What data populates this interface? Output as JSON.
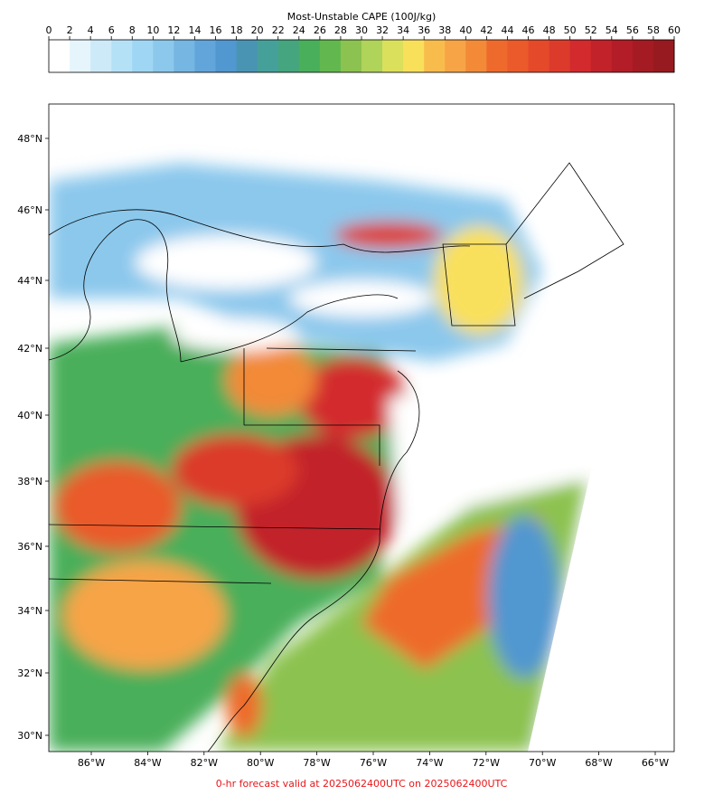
{
  "colorbar": {
    "title": "Most-Unstable CAPE (100J/kg)",
    "ticks": [
      0,
      2,
      4,
      6,
      8,
      10,
      12,
      14,
      16,
      18,
      20,
      22,
      24,
      26,
      28,
      30,
      32,
      34,
      36,
      38,
      40,
      42,
      44,
      46,
      48,
      50,
      52,
      54,
      56,
      58,
      60
    ],
    "colors": [
      "#ffffff",
      "#e6f5fc",
      "#cdeaf9",
      "#b5e1f7",
      "#9fd6f3",
      "#8bc8ec",
      "#75b6e2",
      "#62a5da",
      "#5197d0",
      "#4a94b3",
      "#46a09a",
      "#45a57f",
      "#4aaf5a",
      "#62b84e",
      "#8cc24f",
      "#b0d35a",
      "#dbe05c",
      "#f9e05b",
      "#f8bc4d",
      "#f7a446",
      "#f28a38",
      "#ee6a2c",
      "#ea5a2a",
      "#e44a2a",
      "#dc3b2c",
      "#d32a2e",
      "#c2222a",
      "#b31d27",
      "#a41b23",
      "#971a20"
    ]
  },
  "map": {
    "lat_labels": [
      "48°N",
      "46°N",
      "44°N",
      "42°N",
      "40°N",
      "38°N",
      "36°N",
      "34°N",
      "32°N",
      "30°N"
    ],
    "lon_labels": [
      "86°W",
      "84°W",
      "82°W",
      "80°W",
      "78°W",
      "76°W",
      "74°W",
      "72°W",
      "70°W",
      "68°W",
      "66°W"
    ]
  },
  "footer": "0-hr forecast valid at 2025062400UTC on 2025062400UTC"
}
